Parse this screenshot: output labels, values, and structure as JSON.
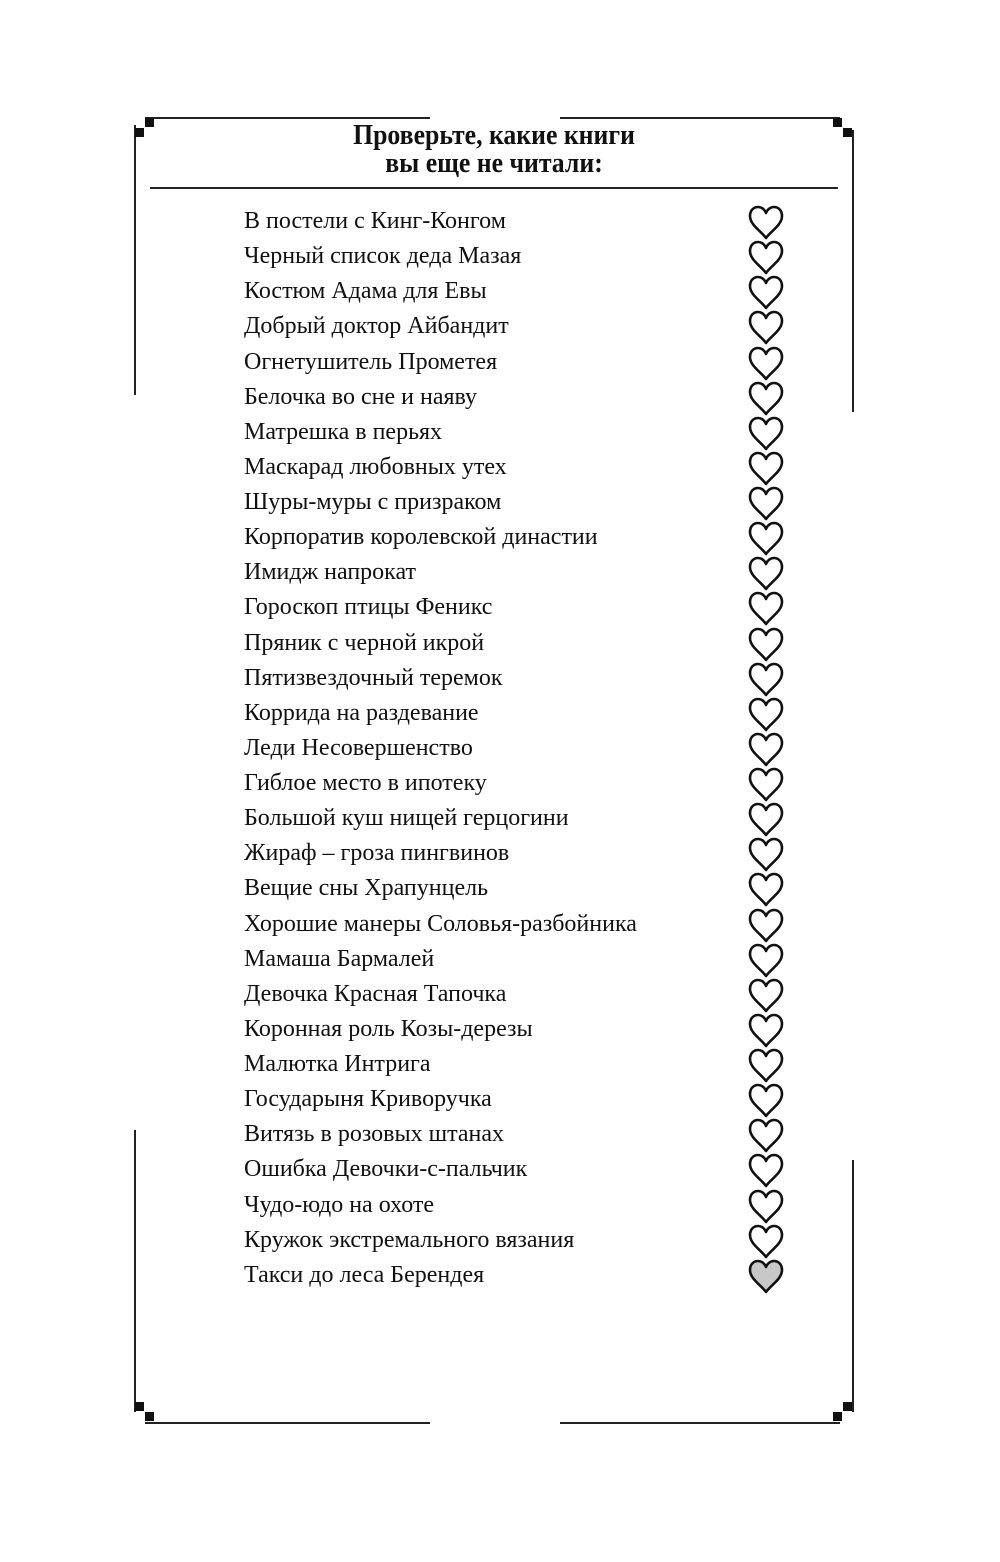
{
  "header": {
    "title_line1": "Проверьте, какие книги",
    "title_line2": "вы еще не читали:"
  },
  "colors": {
    "heart_outline": "#111111",
    "heart_filled": "#c8c8c8"
  },
  "books": [
    {
      "title": "В постели с Кинг-Конгом",
      "icon": "heart-outline-icon"
    },
    {
      "title": "Черный список деда Мазая",
      "icon": "heart-outline-icon"
    },
    {
      "title": "Костюм Адама для Евы",
      "icon": "heart-outline-icon"
    },
    {
      "title": "Добрый доктор Айбандит",
      "icon": "heart-outline-icon"
    },
    {
      "title": "Огнетушитель Прометея",
      "icon": "heart-outline-icon"
    },
    {
      "title": "Белочка во сне и наяву",
      "icon": "heart-outline-icon"
    },
    {
      "title": "Матрешка в перьях",
      "icon": "heart-outline-icon"
    },
    {
      "title": "Маскарад любовных утех",
      "icon": "heart-outline-icon"
    },
    {
      "title": "Шуры-муры с призраком",
      "icon": "heart-outline-icon"
    },
    {
      "title": "Корпоратив королевской династии",
      "icon": "heart-outline-icon"
    },
    {
      "title": "Имидж напрокат",
      "icon": "heart-outline-icon"
    },
    {
      "title": "Гороскоп птицы Феникс",
      "icon": "heart-outline-icon"
    },
    {
      "title": "Пряник с черной икрой",
      "icon": "heart-outline-icon"
    },
    {
      "title": "Пятизвездочный теремок",
      "icon": "heart-outline-icon"
    },
    {
      "title": "Коррида на раздевание",
      "icon": "heart-outline-icon"
    },
    {
      "title": "Леди Несовершенство",
      "icon": "heart-outline-icon"
    },
    {
      "title": "Гиблое место в ипотеку",
      "icon": "heart-outline-icon"
    },
    {
      "title": "Большой куш нищей герцогини",
      "icon": "heart-outline-icon"
    },
    {
      "title": "Жираф – гроза пингвинов",
      "icon": "heart-outline-icon"
    },
    {
      "title": "Вещие сны Храпунцель",
      "icon": "heart-outline-icon"
    },
    {
      "title": "Хорошие манеры Соловья-разбойника",
      "icon": "heart-outline-icon"
    },
    {
      "title": "Мамаша Бармалей",
      "icon": "heart-outline-icon"
    },
    {
      "title": "Девочка Красная Тапочка",
      "icon": "heart-outline-icon"
    },
    {
      "title": "Коронная роль Козы-дерезы",
      "icon": "heart-outline-icon"
    },
    {
      "title": "Малютка Интрига",
      "icon": "heart-outline-icon"
    },
    {
      "title": "Государыня Криворучка",
      "icon": "heart-outline-icon"
    },
    {
      "title": "Витязь в розовых штанах",
      "icon": "heart-outline-icon"
    },
    {
      "title": "Ошибка Девочки-с-пальчик",
      "icon": "heart-outline-icon"
    },
    {
      "title": "Чудо-юдо на охоте",
      "icon": "heart-outline-icon"
    },
    {
      "title": "Кружок экстремального вязания",
      "icon": "heart-outline-icon"
    },
    {
      "title": "Такси до леса Берендея",
      "icon": "heart-filled-icon",
      "read": true
    }
  ]
}
